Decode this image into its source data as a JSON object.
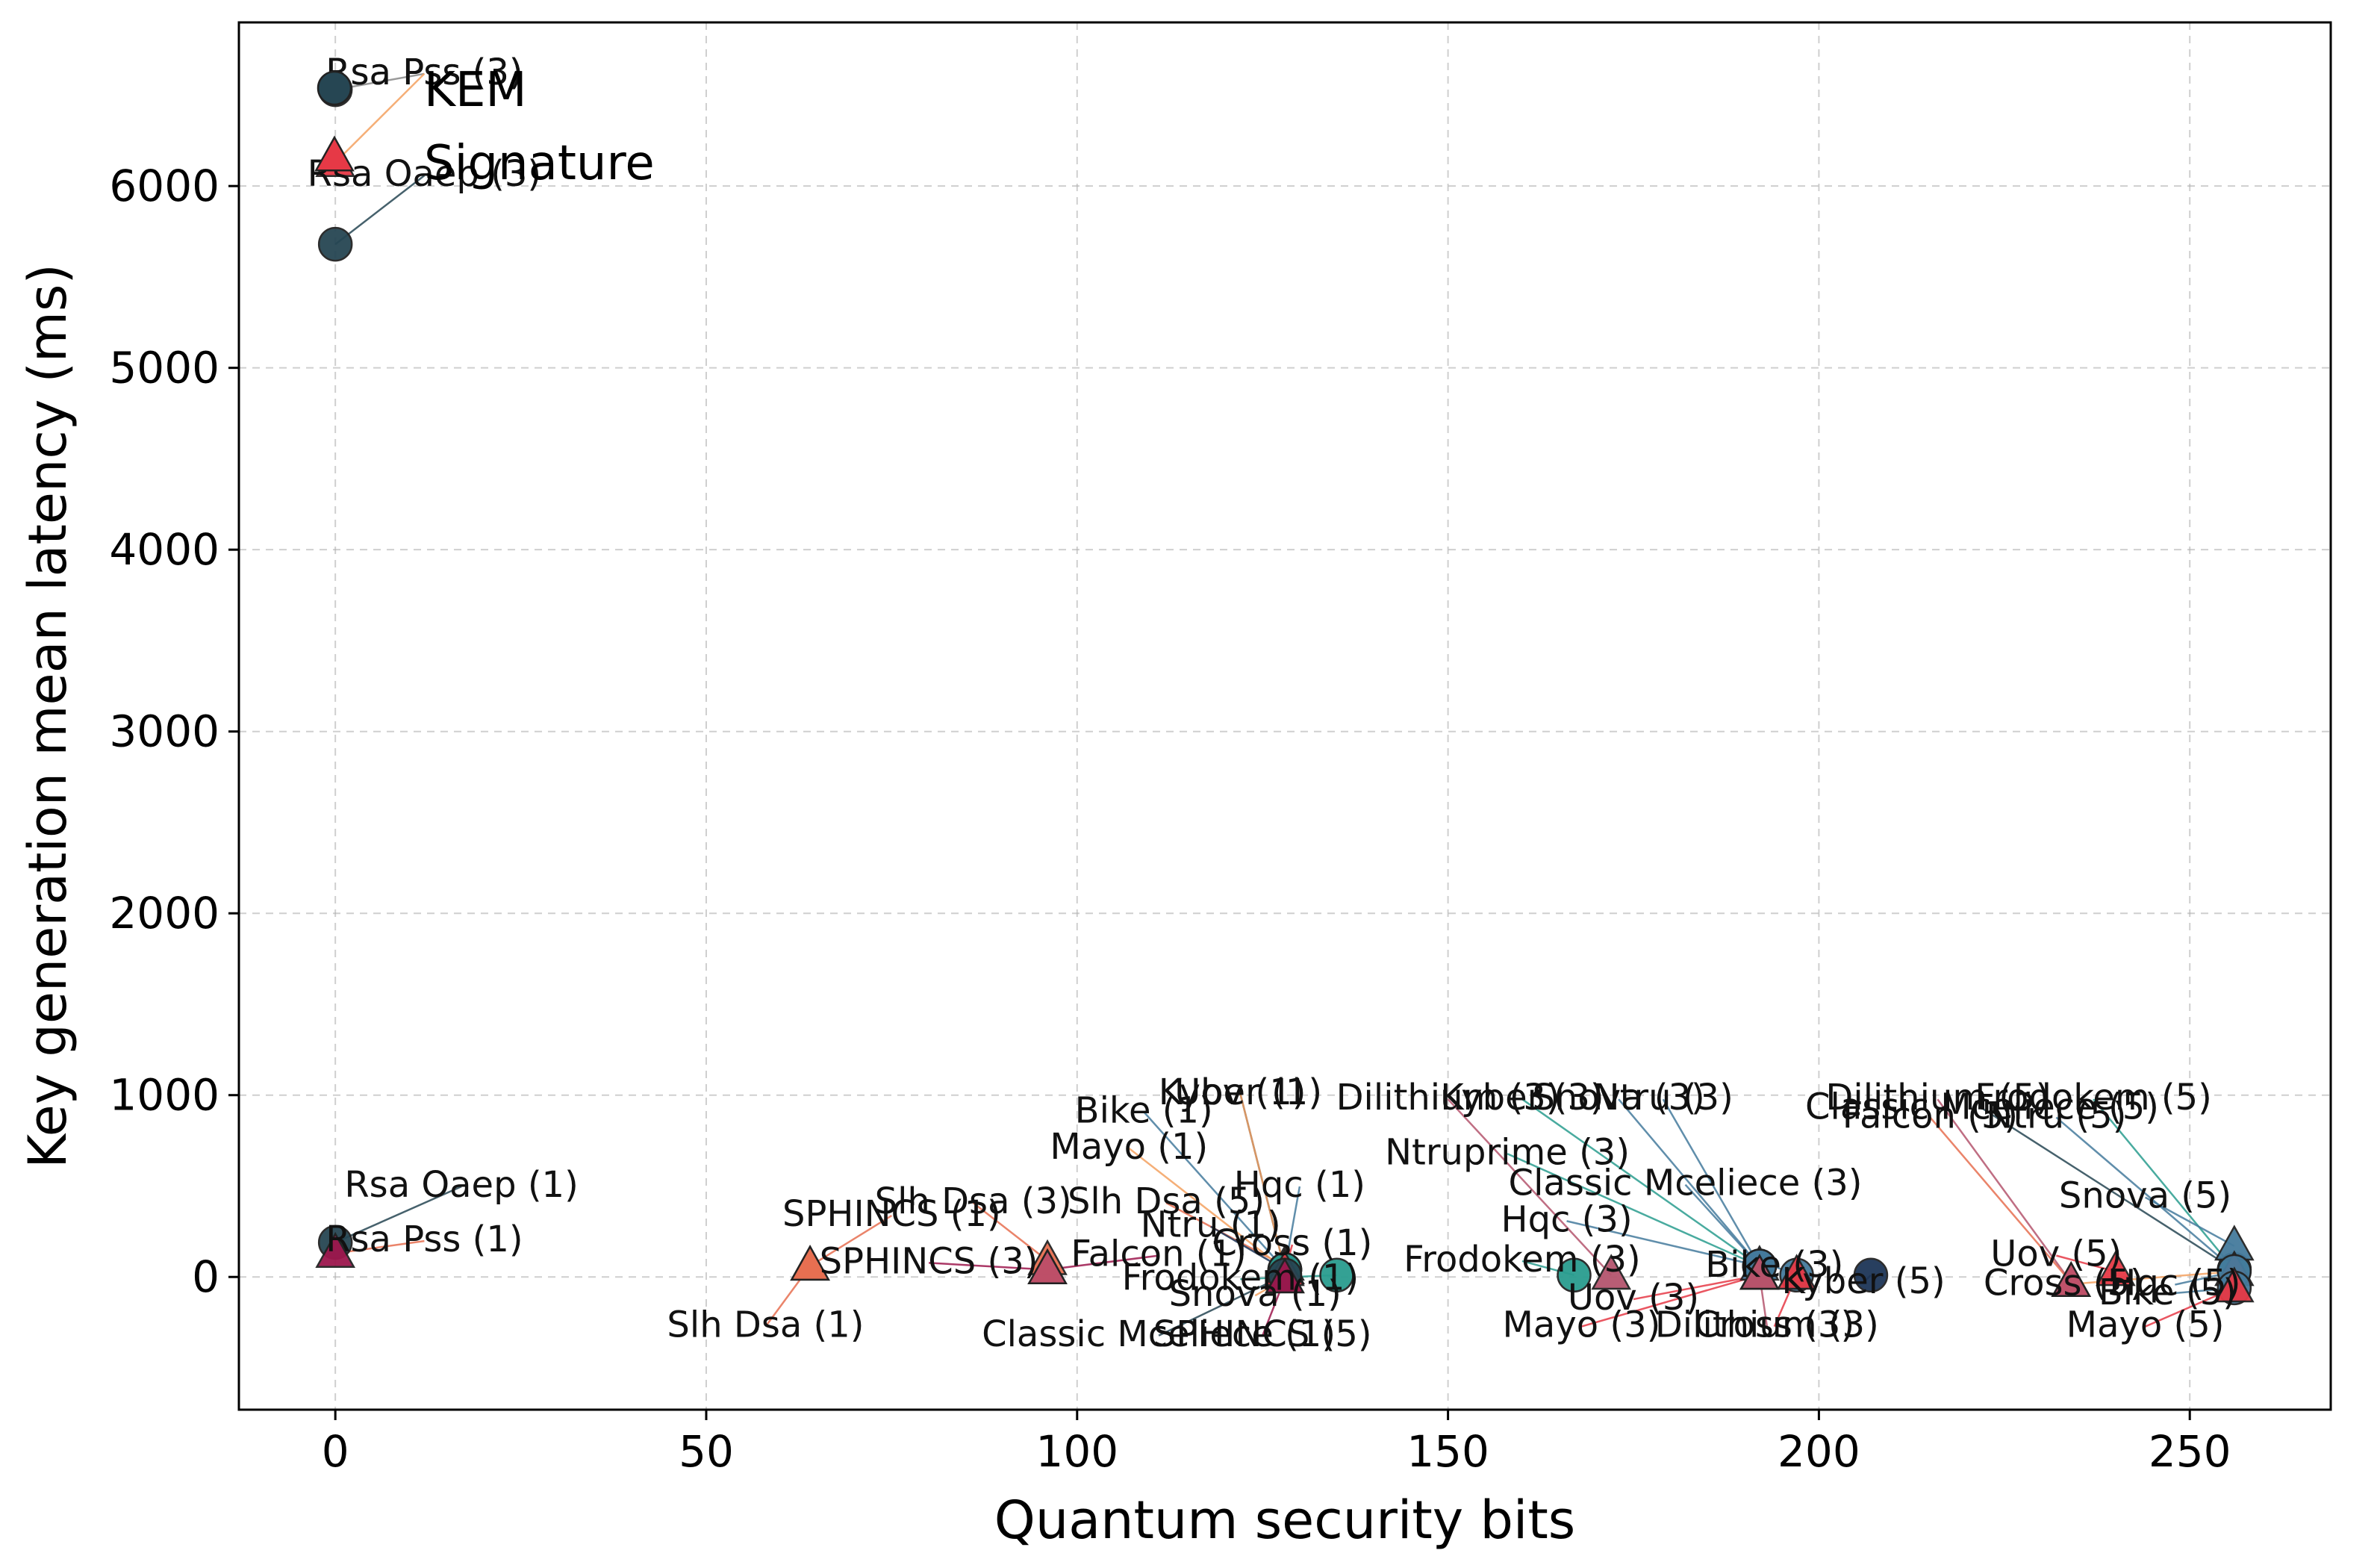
{
  "chart_data": {
    "type": "scatter",
    "title": "",
    "xlabel": "Quantum security bits",
    "ylabel": "Key generation mean latency (ms)",
    "xlim": [
      -13,
      269
    ],
    "ylim": [
      -730,
      6900
    ],
    "xticks": [
      0,
      50,
      100,
      150,
      200,
      250
    ],
    "yticks": [
      0,
      1000,
      2000,
      3000,
      4000,
      5000,
      6000
    ],
    "grid": true,
    "legend": {
      "placement": "top-left",
      "entries": [
        {
          "label": "KEM",
          "marker": "circle"
        },
        {
          "label": "Signature",
          "marker": "triangle"
        }
      ]
    },
    "points": [
      {
        "label": "Rsa Pss (3)",
        "x": 0,
        "y": 6530,
        "kind": "KEM",
        "color": "#264653",
        "lx": 12,
        "ly": 6560,
        "line": "#888888"
      },
      {
        "label": "Rsa Pss (3)",
        "x": 0,
        "y": 6130,
        "kind": "Signature",
        "color": "#e63946",
        "lx": 12,
        "ly": 6560,
        "line": "#f4a261"
      },
      {
        "label": "Rsa Oaep (3)",
        "x": 0,
        "y": 5680,
        "kind": "KEM",
        "color": "#264653",
        "lx": 12,
        "ly": 6000,
        "line": "#264653"
      },
      {
        "label": "Rsa Oaep (1)",
        "x": 0,
        "y": 190,
        "kind": "KEM",
        "color": "#264653",
        "lx": 17,
        "ly": 440,
        "line": "#264653"
      },
      {
        "label": "Rsa Pss (1)",
        "x": 0,
        "y": 130,
        "kind": "Signature",
        "color": "#9d174d",
        "lx": 12,
        "ly": 140,
        "line": "#e76f51"
      },
      {
        "label": "SPHINCS (1)",
        "x": 64,
        "y": 60,
        "kind": "Signature",
        "color": "#e76f51",
        "lx": 75,
        "ly": 280,
        "line": "#e76f51"
      },
      {
        "label": "Slh Dsa (1)",
        "x": 64,
        "y": 60,
        "kind": "Signature",
        "color": "#e76f51",
        "lx": 58,
        "ly": -330,
        "line": "#e76f51"
      },
      {
        "label": "Slh Dsa (3)",
        "x": 96,
        "y": 90,
        "kind": "Signature",
        "color": "#e76f51",
        "lx": 86,
        "ly": 350,
        "line": "#e76f51"
      },
      {
        "label": "SPHINCS (3)",
        "x": 96,
        "y": 40,
        "kind": "Signature",
        "color": "#9d174d",
        "lx": 80,
        "ly": 20,
        "line": "#9d174d"
      },
      {
        "label": "Falcon (1)",
        "x": 96,
        "y": 40,
        "kind": "Signature",
        "color": "#c0526a",
        "lx": 111,
        "ly": 60,
        "line": "#9d174d"
      },
      {
        "label": "Slh Dsa (5)",
        "x": 128,
        "y": 60,
        "kind": "Signature",
        "color": "#e76f51",
        "lx": 112,
        "ly": 350,
        "line": "#e76f51"
      },
      {
        "label": "Ntru (1)",
        "x": 128,
        "y": 40,
        "kind": "KEM",
        "color": "#1d3557",
        "lx": 118,
        "ly": 220,
        "line": "#1d3557"
      },
      {
        "label": "Mayo (1)",
        "x": 128,
        "y": 40,
        "kind": "Signature",
        "color": "#e63946",
        "lx": 107,
        "ly": 650,
        "line": "#f4a261"
      },
      {
        "label": "Bike (1)",
        "x": 128,
        "y": 40,
        "kind": "KEM",
        "color": "#457b9d",
        "lx": 109,
        "ly": 850,
        "line": "#457b9d"
      },
      {
        "label": "Kyber (1)",
        "x": 128,
        "y": 40,
        "kind": "KEM",
        "color": "#1d3557",
        "lx": 122,
        "ly": 950,
        "line": "#1d3557"
      },
      {
        "label": "Uov (1)",
        "x": 128,
        "y": 40,
        "kind": "Signature",
        "color": "#f4a261",
        "lx": 122,
        "ly": 950,
        "line": "#f4a261"
      },
      {
        "label": "Hqc (1)",
        "x": 128,
        "y": 40,
        "kind": "KEM",
        "color": "#2a9d8f",
        "lx": 130,
        "ly": 440,
        "line": "#457b9d"
      },
      {
        "label": "Cross (1)",
        "x": 128,
        "y": 30,
        "kind": "Signature",
        "color": "#e63946",
        "lx": 129,
        "ly": 120,
        "line": "#e63946"
      },
      {
        "label": "Frodokem (1)",
        "x": 135,
        "y": 10,
        "kind": "KEM",
        "color": "#2a9d8f",
        "lx": 122,
        "ly": -70,
        "line": "#2a9d8f"
      },
      {
        "label": "Snova (1)",
        "x": 128,
        "y": -10,
        "kind": "Signature",
        "color": "#f4a261",
        "lx": 124,
        "ly": -160,
        "line": "#f4a261"
      },
      {
        "label": "Classic Mceliece (1)",
        "x": 128,
        "y": 10,
        "kind": "KEM",
        "color": "#264653",
        "lx": 111,
        "ly": -380,
        "line": "#264653"
      },
      {
        "label": "SPHINCS (5)",
        "x": 128,
        "y": -10,
        "kind": "Signature",
        "color": "#9d174d",
        "lx": 125,
        "ly": -380,
        "line": "#9d174d"
      },
      {
        "label": "Frodokem (3)",
        "x": 167,
        "y": 10,
        "kind": "KEM",
        "color": "#2a9d8f",
        "lx": 160,
        "ly": 30,
        "line": "#2a9d8f"
      },
      {
        "label": "Hqc (3)",
        "x": 192,
        "y": 60,
        "kind": "KEM",
        "color": "#457b9d",
        "lx": 166,
        "ly": 250,
        "line": "#457b9d"
      },
      {
        "label": "Dilithium (3)",
        "x": 172,
        "y": 10,
        "kind": "Signature",
        "color": "#b5556e",
        "lx": 150,
        "ly": 920,
        "line": "#b5556e"
      },
      {
        "label": "Kyber (3)",
        "x": 192,
        "y": 60,
        "kind": "KEM",
        "color": "#1d3557",
        "lx": 160,
        "ly": 920,
        "line": "#2a9d8f"
      },
      {
        "label": "Snova (3)",
        "x": 192,
        "y": 60,
        "kind": "Signature",
        "color": "#457b9d",
        "lx": 173,
        "ly": 920,
        "line": "#457b9d"
      },
      {
        "label": "Ntru (3)",
        "x": 192,
        "y": 60,
        "kind": "KEM",
        "color": "#1d3557",
        "lx": 179,
        "ly": 920,
        "line": "#457b9d"
      },
      {
        "label": "Ntruprime (3)",
        "x": 192,
        "y": 60,
        "kind": "KEM",
        "color": "#457b9d",
        "lx": 158,
        "ly": 620,
        "line": "#2a9d8f"
      },
      {
        "label": "Classic Mceliece (3)",
        "x": 192,
        "y": 60,
        "kind": "KEM",
        "color": "#457b9d",
        "lx": 182,
        "ly": 450,
        "line": "#457b9d"
      },
      {
        "label": "Uov (3)",
        "x": 192,
        "y": 10,
        "kind": "Signature",
        "color": "#e63946",
        "lx": 175,
        "ly": -180,
        "line": "#e63946"
      },
      {
        "label": "Mayo (3)",
        "x": 192,
        "y": 10,
        "kind": "Signature",
        "color": "#e63946",
        "lx": 168,
        "ly": -330,
        "line": "#e63946"
      },
      {
        "label": "Bike (3)",
        "x": 197,
        "y": 10,
        "kind": "KEM",
        "color": "#457b9d",
        "lx": 194,
        "ly": 0,
        "line": "#457b9d"
      },
      {
        "label": "Cross (3)",
        "x": 197,
        "y": 10,
        "kind": "Signature",
        "color": "#e63946",
        "lx": 194,
        "ly": -330,
        "line": "#e63946"
      },
      {
        "label": "Dilithium (3)",
        "x": 192,
        "y": 10,
        "kind": "Signature",
        "color": "#b5556e",
        "lx": 193,
        "ly": -330,
        "line": "#b5556e"
      },
      {
        "label": "Kyber (5)",
        "x": 207,
        "y": 10,
        "kind": "KEM",
        "color": "#1d3557",
        "lx": 206,
        "ly": -90,
        "line": "#1d3557"
      },
      {
        "label": "Dilithium (5)",
        "x": 234,
        "y": -30,
        "kind": "Signature",
        "color": "#b5556e",
        "lx": 216,
        "ly": 920,
        "line": "#b5556e"
      },
      {
        "label": "Falcon (5)",
        "x": 234,
        "y": -30,
        "kind": "Signature",
        "color": "#c0526a",
        "lx": 215,
        "ly": 820,
        "line": "#e76f51"
      },
      {
        "label": "Classic Mceliece (5)",
        "x": 256,
        "y": 40,
        "kind": "KEM",
        "color": "#264653",
        "lx": 222,
        "ly": 870,
        "line": "#264653"
      },
      {
        "label": "Ntru (5)",
        "x": 256,
        "y": 40,
        "kind": "KEM",
        "color": "#457b9d",
        "lx": 232,
        "ly": 820,
        "line": "#457b9d"
      },
      {
        "label": "Frodokem (5)",
        "x": 256,
        "y": 40,
        "kind": "KEM",
        "color": "#2a9d8f",
        "lx": 237,
        "ly": 920,
        "line": "#2a9d8f"
      },
      {
        "label": "Snova (5)",
        "x": 256,
        "y": 170,
        "kind": "Signature",
        "color": "#457b9d",
        "lx": 244,
        "ly": 380,
        "line": "#457b9d"
      },
      {
        "label": "Uov (5)",
        "x": 240,
        "y": 30,
        "kind": "Signature",
        "color": "#e63946",
        "lx": 232,
        "ly": 60,
        "line": "#e63946"
      },
      {
        "label": "Cross (5)",
        "x": 256,
        "y": 30,
        "kind": "Signature",
        "color": "#e63946",
        "lx": 233,
        "ly": -100,
        "line": "#f4a261"
      },
      {
        "label": "Hqc (5)",
        "x": 256,
        "y": 30,
        "kind": "KEM",
        "color": "#457b9d",
        "lx": 248,
        "ly": -100,
        "line": "#457b9d"
      },
      {
        "label": "Bike (5)",
        "x": 256,
        "y": -60,
        "kind": "KEM",
        "color": "#457b9d",
        "lx": 247,
        "ly": -150,
        "line": "#457b9d"
      },
      {
        "label": "Mayo (5)",
        "x": 256,
        "y": -60,
        "kind": "Signature",
        "color": "#e63946",
        "lx": 244,
        "ly": -330,
        "line": "#e63946"
      }
    ]
  }
}
